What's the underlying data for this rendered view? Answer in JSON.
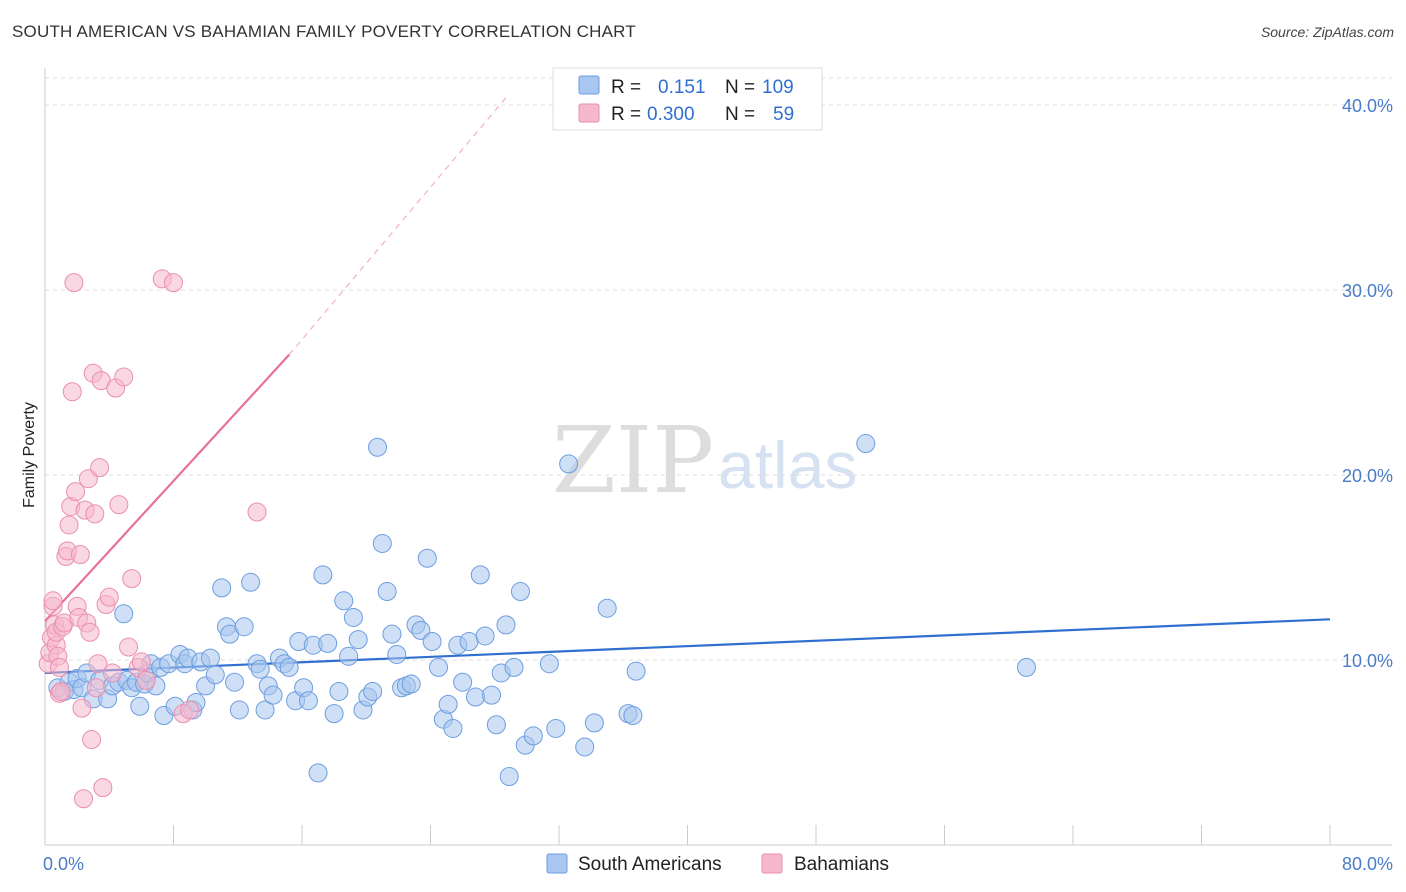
{
  "header": {
    "title": "SOUTH AMERICAN VS BAHAMIAN FAMILY POVERTY CORRELATION CHART",
    "source": "Source: ZipAtlas.com"
  },
  "watermark": {
    "zip": "ZIP",
    "atlas": "atlas"
  },
  "legend": {
    "rows": [
      {
        "r_label": "R =",
        "r_value": "0.151",
        "n_label": "N =",
        "n_value": "109",
        "color": "#a8c6ef"
      },
      {
        "r_label": "R =",
        "r_value": "0.300",
        "n_label": "N =",
        "n_value": "59",
        "color": "#f5b8cc"
      }
    ]
  },
  "bottom_legend": [
    {
      "label": "South Americans",
      "color": "#a8c6ef"
    },
    {
      "label": "Bahamians",
      "color": "#f5b8cc"
    }
  ],
  "colors": {
    "blue_fill": "#a8c6ef",
    "blue_stroke": "#6d9ee0",
    "blue_line": "#2f6fd0",
    "pink_fill": "#f5b8cc",
    "pink_stroke": "#ea8fae",
    "pink_line": "#e8709a",
    "grid": "#dddddd",
    "axis": "#cccccc"
  },
  "chart_data": {
    "type": "scatter",
    "ylabel": "Family Poverty",
    "xlim": [
      0,
      80
    ],
    "ylim": [
      0,
      42
    ],
    "x_tick_labels": [
      {
        "value": 0,
        "label": "0.0%"
      },
      {
        "value": 80,
        "label": "80.0%"
      }
    ],
    "y_tick_labels": [
      {
        "value": 10,
        "label": "10.0%"
      },
      {
        "value": 20,
        "label": "20.0%"
      },
      {
        "value": 30,
        "label": "30.0%"
      },
      {
        "value": 40,
        "label": "40.0%"
      }
    ],
    "grid": "horizontal-dashed",
    "series": [
      {
        "name": "South Americans",
        "trend": {
          "x": [
            0,
            80
          ],
          "y": [
            9.3,
            12.2
          ]
        },
        "points": [
          [
            0.8,
            8.5
          ],
          [
            1.2,
            8.3
          ],
          [
            1.5,
            8.8
          ],
          [
            1.8,
            8.4
          ],
          [
            2.0,
            9.0
          ],
          [
            2.3,
            8.5
          ],
          [
            2.6,
            9.3
          ],
          [
            3.0,
            7.9
          ],
          [
            3.4,
            8.9
          ],
          [
            3.9,
            7.9
          ],
          [
            4.2,
            8.6
          ],
          [
            4.6,
            8.8
          ],
          [
            4.9,
            12.5
          ],
          [
            5.1,
            8.9
          ],
          [
            5.4,
            8.5
          ],
          [
            5.7,
            8.8
          ],
          [
            5.9,
            7.5
          ],
          [
            6.2,
            8.7
          ],
          [
            6.4,
            9.3
          ],
          [
            6.6,
            9.8
          ],
          [
            6.9,
            8.6
          ],
          [
            7.2,
            9.6
          ],
          [
            7.4,
            7.0
          ],
          [
            7.7,
            9.8
          ],
          [
            8.1,
            7.5
          ],
          [
            8.4,
            10.3
          ],
          [
            8.7,
            9.8
          ],
          [
            8.9,
            10.1
          ],
          [
            9.2,
            7.3
          ],
          [
            9.4,
            7.7
          ],
          [
            9.7,
            9.9
          ],
          [
            10.0,
            8.6
          ],
          [
            10.3,
            10.1
          ],
          [
            10.6,
            9.2
          ],
          [
            11.0,
            13.9
          ],
          [
            11.3,
            11.8
          ],
          [
            11.5,
            11.4
          ],
          [
            11.8,
            8.8
          ],
          [
            12.1,
            7.3
          ],
          [
            12.4,
            11.8
          ],
          [
            12.8,
            14.2
          ],
          [
            13.2,
            9.8
          ],
          [
            13.4,
            9.5
          ],
          [
            13.7,
            7.3
          ],
          [
            13.9,
            8.6
          ],
          [
            14.2,
            8.1
          ],
          [
            14.6,
            10.1
          ],
          [
            14.9,
            9.8
          ],
          [
            15.2,
            9.6
          ],
          [
            15.6,
            7.8
          ],
          [
            15.8,
            11.0
          ],
          [
            16.1,
            8.5
          ],
          [
            16.4,
            7.8
          ],
          [
            16.7,
            10.8
          ],
          [
            17.0,
            3.9
          ],
          [
            17.3,
            14.6
          ],
          [
            17.6,
            10.9
          ],
          [
            18.0,
            7.1
          ],
          [
            18.3,
            8.3
          ],
          [
            18.6,
            13.2
          ],
          [
            18.9,
            10.2
          ],
          [
            19.2,
            12.3
          ],
          [
            19.5,
            11.1
          ],
          [
            19.8,
            7.3
          ],
          [
            20.1,
            8.0
          ],
          [
            20.4,
            8.3
          ],
          [
            20.7,
            21.5
          ],
          [
            21.0,
            16.3
          ],
          [
            21.3,
            13.7
          ],
          [
            21.6,
            11.4
          ],
          [
            21.9,
            10.3
          ],
          [
            22.2,
            8.5
          ],
          [
            22.5,
            8.6
          ],
          [
            22.8,
            8.7
          ],
          [
            23.1,
            11.9
          ],
          [
            23.4,
            11.6
          ],
          [
            23.8,
            15.5
          ],
          [
            24.1,
            11.0
          ],
          [
            24.5,
            9.6
          ],
          [
            24.8,
            6.8
          ],
          [
            25.1,
            7.6
          ],
          [
            25.4,
            6.3
          ],
          [
            25.7,
            10.8
          ],
          [
            26.0,
            8.8
          ],
          [
            26.4,
            11.0
          ],
          [
            26.8,
            8.0
          ],
          [
            27.1,
            14.6
          ],
          [
            27.4,
            11.3
          ],
          [
            27.8,
            8.1
          ],
          [
            28.1,
            6.5
          ],
          [
            28.4,
            9.3
          ],
          [
            28.7,
            11.9
          ],
          [
            28.9,
            3.7
          ],
          [
            29.2,
            9.6
          ],
          [
            29.6,
            13.7
          ],
          [
            29.9,
            5.4
          ],
          [
            30.4,
            5.9
          ],
          [
            31.4,
            9.8
          ],
          [
            31.8,
            6.3
          ],
          [
            32.6,
            20.6
          ],
          [
            33.6,
            5.3
          ],
          [
            34.2,
            6.6
          ],
          [
            35.0,
            12.8
          ],
          [
            36.3,
            7.1
          ],
          [
            36.6,
            7.0
          ],
          [
            36.8,
            9.4
          ],
          [
            51.1,
            21.7
          ],
          [
            61.1,
            9.6
          ]
        ]
      },
      {
        "name": "Bahamians",
        "trend": {
          "x": [
            0,
            15.2
          ],
          "y": [
            12.1,
            26.5
          ]
        },
        "trend_dashed": {
          "x": [
            15.2,
            28.8
          ],
          "y": [
            26.5,
            40.5
          ]
        },
        "points": [
          [
            0.2,
            9.8
          ],
          [
            0.3,
            10.4
          ],
          [
            0.4,
            11.2
          ],
          [
            0.5,
            12.9
          ],
          [
            0.5,
            13.2
          ],
          [
            0.6,
            11.9
          ],
          [
            0.7,
            10.8
          ],
          [
            0.7,
            11.5
          ],
          [
            0.8,
            10.2
          ],
          [
            0.9,
            9.6
          ],
          [
            0.9,
            8.2
          ],
          [
            1.0,
            8.3
          ],
          [
            1.1,
            11.8
          ],
          [
            1.2,
            12.0
          ],
          [
            1.3,
            15.6
          ],
          [
            1.4,
            15.9
          ],
          [
            1.5,
            17.3
          ],
          [
            1.6,
            18.3
          ],
          [
            1.7,
            24.5
          ],
          [
            1.8,
            30.4
          ],
          [
            1.9,
            19.1
          ],
          [
            2.0,
            12.9
          ],
          [
            2.1,
            12.3
          ],
          [
            2.2,
            15.7
          ],
          [
            2.3,
            7.4
          ],
          [
            2.4,
            2.5
          ],
          [
            2.5,
            18.1
          ],
          [
            2.6,
            12.0
          ],
          [
            2.7,
            19.8
          ],
          [
            2.8,
            11.5
          ],
          [
            2.9,
            5.7
          ],
          [
            3.0,
            25.5
          ],
          [
            3.1,
            17.9
          ],
          [
            3.2,
            8.5
          ],
          [
            3.3,
            9.8
          ],
          [
            3.4,
            20.4
          ],
          [
            3.5,
            25.1
          ],
          [
            3.6,
            3.1
          ],
          [
            3.8,
            13.0
          ],
          [
            4.0,
            13.4
          ],
          [
            4.2,
            9.3
          ],
          [
            4.4,
            24.7
          ],
          [
            4.6,
            18.4
          ],
          [
            4.9,
            25.3
          ],
          [
            5.2,
            10.7
          ],
          [
            5.4,
            14.4
          ],
          [
            5.8,
            9.6
          ],
          [
            6.0,
            9.9
          ],
          [
            6.3,
            8.9
          ],
          [
            7.3,
            30.6
          ],
          [
            8.0,
            30.4
          ],
          [
            8.6,
            7.1
          ],
          [
            9.0,
            7.3
          ],
          [
            13.2,
            18.0
          ]
        ]
      }
    ]
  }
}
